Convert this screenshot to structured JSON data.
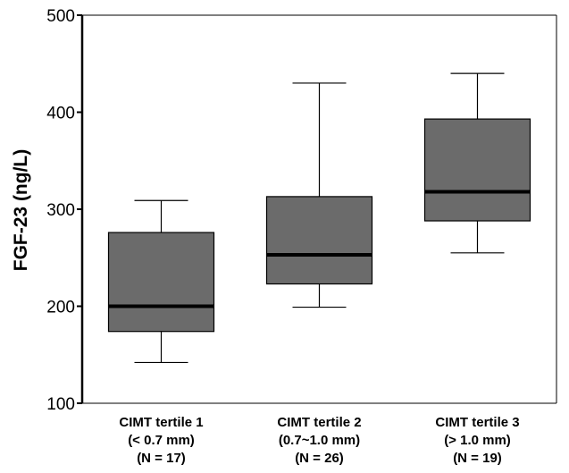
{
  "chart_data": {
    "type": "box",
    "title": "",
    "xlabel": "",
    "ylabel": "FGF-23 (ng/L)",
    "ylim": [
      100,
      500
    ],
    "yticks": [
      100,
      200,
      300,
      400,
      500
    ],
    "grid": false,
    "box_color": "#6b6b6b",
    "categories": [
      {
        "lines": [
          "CIMT tertile 1",
          "(< 0.7 mm)",
          "(N = 17)"
        ],
        "min": 142,
        "q1": 174,
        "median": 200,
        "q3": 276,
        "max": 309
      },
      {
        "lines": [
          "CIMT tertile 2",
          "(0.7~1.0 mm)",
          "(N = 26)"
        ],
        "min": 199,
        "q1": 223,
        "median": 253,
        "q3": 313,
        "max": 430
      },
      {
        "lines": [
          "CIMT tertile 3",
          "(> 1.0 mm)",
          "(N = 19)"
        ],
        "min": 255,
        "q1": 288,
        "median": 318,
        "q3": 393,
        "max": 440
      }
    ]
  }
}
